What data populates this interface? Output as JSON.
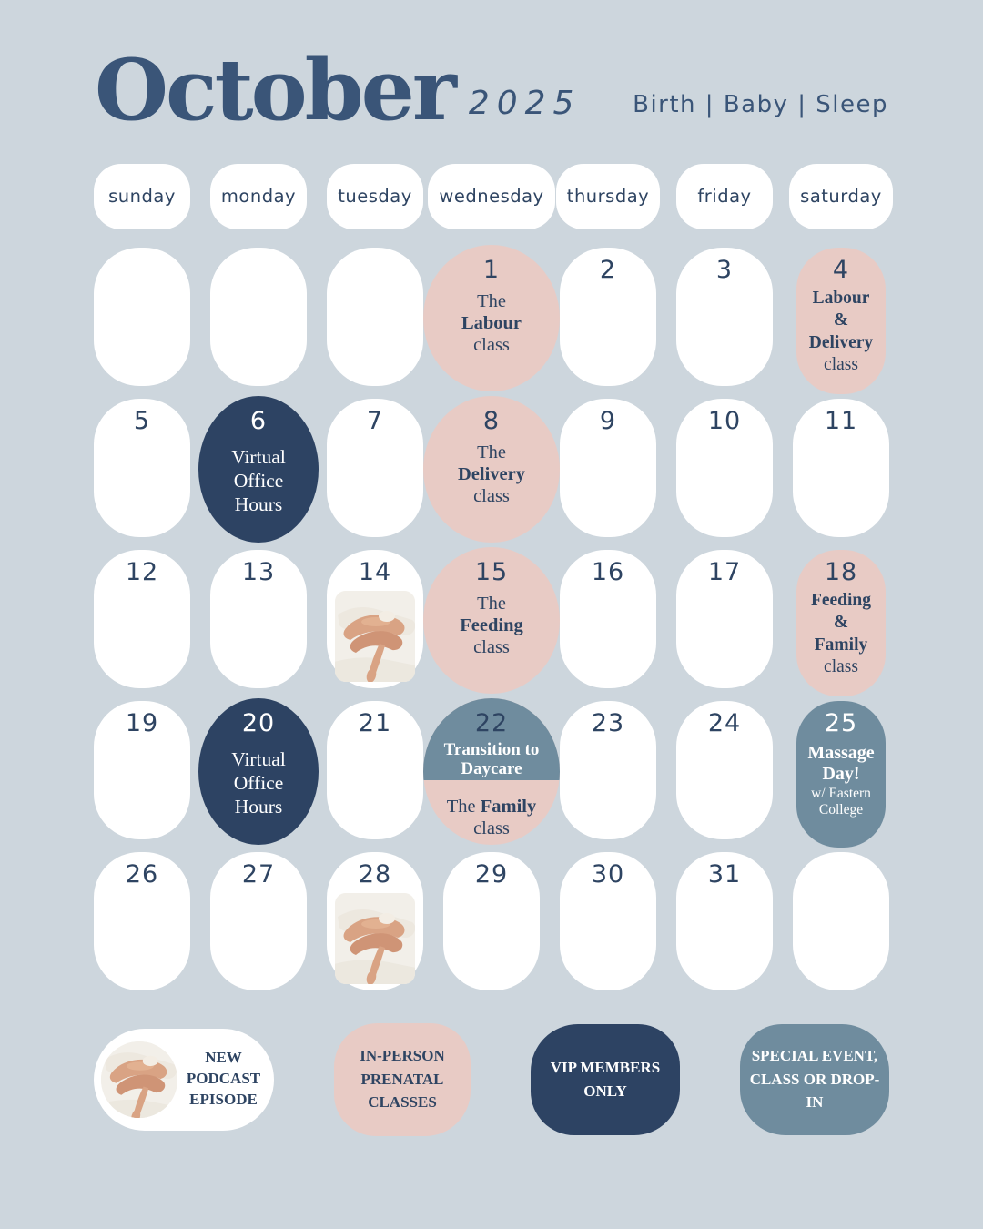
{
  "colors": {
    "bg": "#cdd6dd",
    "white": "#ffffff",
    "pink": "#e8cbc5",
    "navy": "#2d4363",
    "steel": "#6f8c9e",
    "navyText": "#2e4462",
    "titleNavy": "#3a5578"
  },
  "header": {
    "month": "October",
    "year": "2025",
    "tagline": "Birth | Baby | Sleep"
  },
  "weekdays": [
    "sunday",
    "monday",
    "tuesday",
    "wednesday",
    "thursday",
    "friday",
    "saturday"
  ],
  "cells": [
    {
      "type": "empty"
    },
    {
      "type": "empty"
    },
    {
      "type": "empty"
    },
    {
      "day": "1",
      "type": "pink-ellipse",
      "lines": [
        {
          "seg": [
            {
              "t": "The"
            }
          ]
        },
        {
          "seg": [
            {
              "t": "Labour",
              "b": 1
            }
          ]
        },
        {
          "seg": [
            {
              "t": "class"
            }
          ]
        }
      ]
    },
    {
      "day": "2",
      "type": "plain"
    },
    {
      "day": "3",
      "type": "plain"
    },
    {
      "day": "4",
      "type": "pink-pill",
      "lines": [
        {
          "seg": [
            {
              "t": "Labour",
              "b": 1
            }
          ]
        },
        {
          "seg": [
            {
              "t": "&",
              "b": 1
            }
          ]
        },
        {
          "seg": [
            {
              "t": "Delivery",
              "b": 1
            }
          ]
        },
        {
          "seg": [
            {
              "t": "class"
            }
          ]
        }
      ]
    },
    {
      "day": "5",
      "type": "plain"
    },
    {
      "day": "6",
      "type": "navy-ellipse",
      "lines": [
        {
          "seg": [
            {
              "t": "Virtual"
            }
          ]
        },
        {
          "seg": [
            {
              "t": "Office"
            }
          ]
        },
        {
          "seg": [
            {
              "t": "Hours"
            }
          ]
        }
      ]
    },
    {
      "day": "7",
      "type": "plain"
    },
    {
      "day": "8",
      "type": "pink-ellipse",
      "lines": [
        {
          "seg": [
            {
              "t": "The"
            }
          ]
        },
        {
          "seg": [
            {
              "t": "Delivery",
              "b": 1
            }
          ]
        },
        {
          "seg": [
            {
              "t": "class"
            }
          ]
        }
      ]
    },
    {
      "day": "9",
      "type": "plain"
    },
    {
      "day": "10",
      "type": "plain"
    },
    {
      "day": "11",
      "type": "plain"
    },
    {
      "day": "12",
      "type": "plain"
    },
    {
      "day": "13",
      "type": "plain"
    },
    {
      "day": "14",
      "type": "photo"
    },
    {
      "day": "15",
      "type": "pink-ellipse",
      "lines": [
        {
          "seg": [
            {
              "t": "The"
            }
          ]
        },
        {
          "seg": [
            {
              "t": "Feeding",
              "b": 1
            }
          ]
        },
        {
          "seg": [
            {
              "t": "class"
            }
          ]
        }
      ]
    },
    {
      "day": "16",
      "type": "plain"
    },
    {
      "day": "17",
      "type": "plain"
    },
    {
      "day": "18",
      "type": "pink-pill",
      "lines": [
        {
          "seg": [
            {
              "t": "Feeding",
              "b": 1
            }
          ]
        },
        {
          "seg": [
            {
              "t": "&",
              "b": 1
            }
          ]
        },
        {
          "seg": [
            {
              "t": "Family",
              "b": 1
            }
          ]
        },
        {
          "seg": [
            {
              "t": "class"
            }
          ]
        }
      ]
    },
    {
      "day": "19",
      "type": "plain"
    },
    {
      "day": "20",
      "type": "navy-ellipse",
      "lines": [
        {
          "seg": [
            {
              "t": "Virtual"
            }
          ]
        },
        {
          "seg": [
            {
              "t": "Office"
            }
          ]
        },
        {
          "seg": [
            {
              "t": "Hours"
            }
          ]
        }
      ]
    },
    {
      "day": "21",
      "type": "plain"
    },
    {
      "day": "22",
      "type": "split",
      "top": [
        {
          "seg": [
            {
              "t": "Transition to",
              "b": 1
            }
          ]
        },
        {
          "seg": [
            {
              "t": "Daycare",
              "b": 1
            }
          ]
        }
      ],
      "lines": [
        {
          "seg": [
            {
              "t": "The "
            },
            {
              "t": "Family",
              "b": 1
            }
          ]
        },
        {
          "seg": [
            {
              "t": "class"
            }
          ]
        }
      ]
    },
    {
      "day": "23",
      "type": "plain"
    },
    {
      "day": "24",
      "type": "plain"
    },
    {
      "day": "25",
      "type": "steel-pill",
      "lines": [
        {
          "seg": [
            {
              "t": "Massage",
              "b": 1
            }
          ]
        },
        {
          "seg": [
            {
              "t": "Day!",
              "b": 1
            }
          ]
        },
        {
          "seg": [
            {
              "t": "w/ Eastern"
            }
          ],
          "small": 1
        },
        {
          "seg": [
            {
              "t": "College"
            }
          ],
          "small": 1
        }
      ]
    },
    {
      "day": "26",
      "type": "plain"
    },
    {
      "day": "27",
      "type": "plain"
    },
    {
      "day": "28",
      "type": "photo"
    },
    {
      "day": "29",
      "type": "plain"
    },
    {
      "day": "30",
      "type": "plain"
    },
    {
      "day": "31",
      "type": "plain"
    },
    {
      "type": "empty"
    }
  ],
  "legend": [
    {
      "label": "NEW PODCAST EPISODE",
      "style": "podcast"
    },
    {
      "label": "IN-PERSON PRENATAL CLASSES",
      "style": "pink"
    },
    {
      "label": "VIP MEMBERS ONLY",
      "style": "navy"
    },
    {
      "label": "SPECIAL EVENT, CLASS OR DROP-IN",
      "style": "steel"
    }
  ],
  "photo_alt": "crossed-legs-on-bed-photo"
}
